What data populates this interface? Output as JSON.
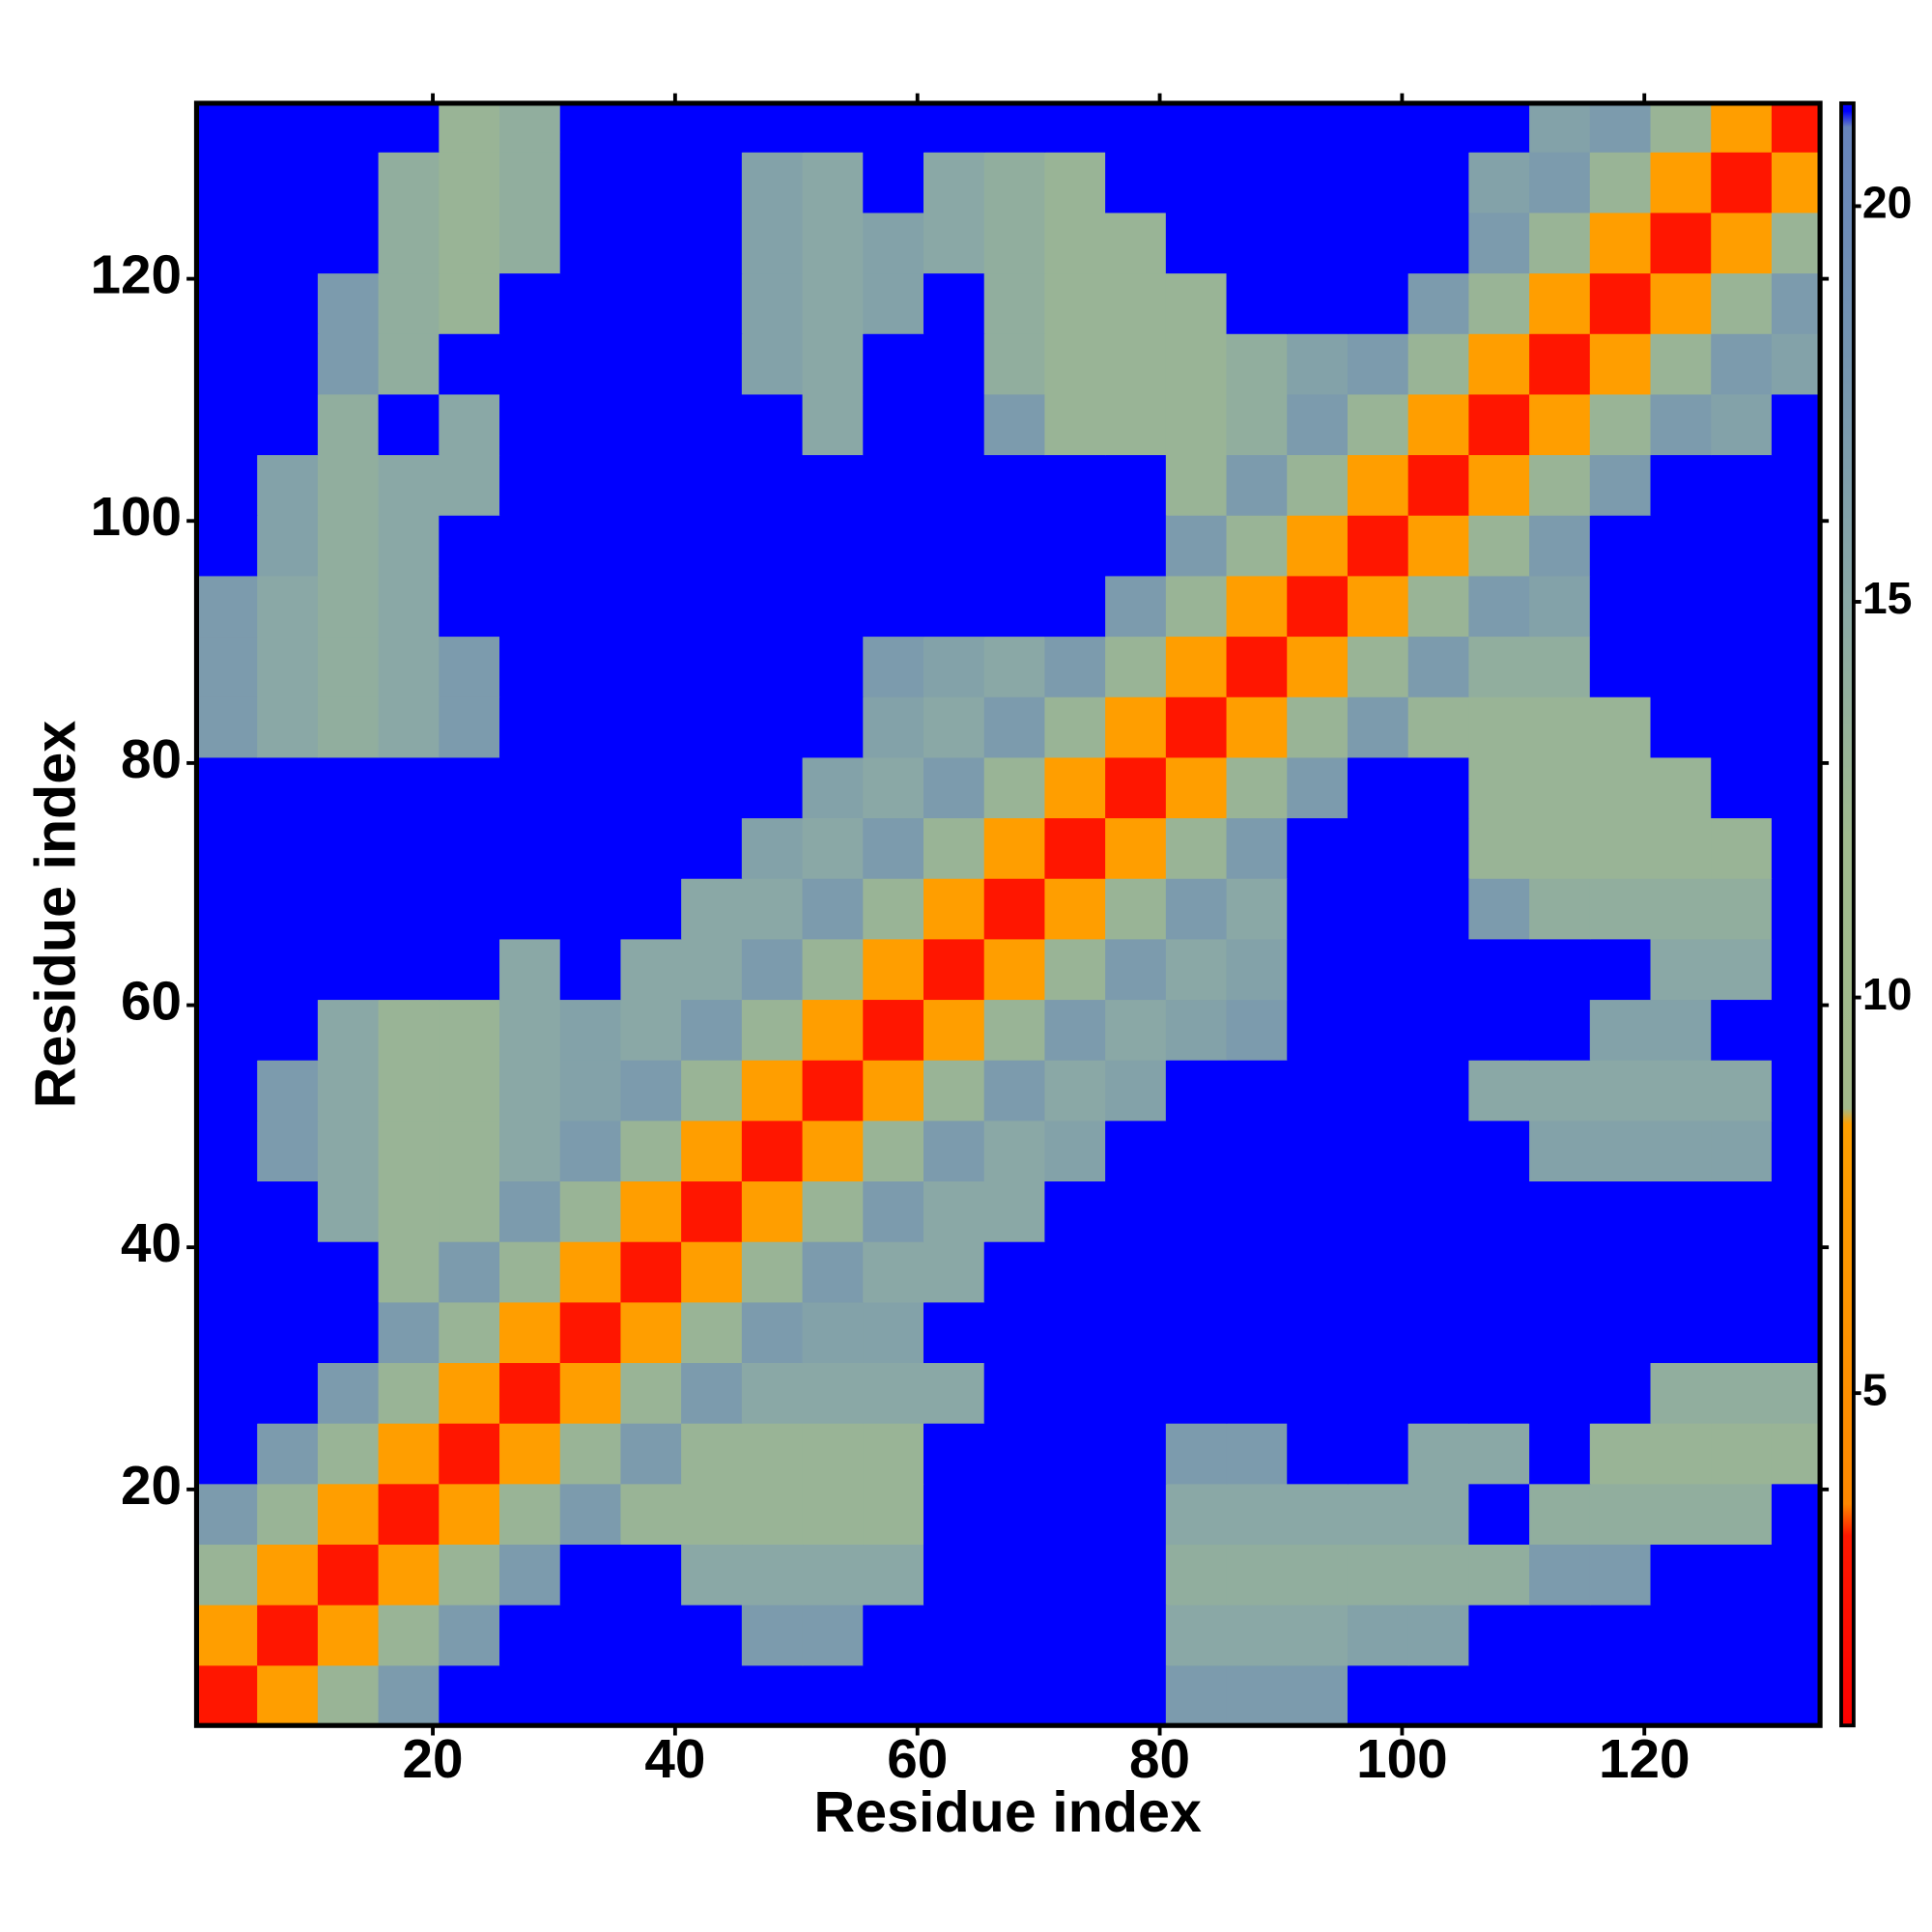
{
  "chart_data": {
    "type": "heatmap",
    "xlabel": "Residue index",
    "ylabel": "Residue index",
    "xlim": [
      0.5,
      134.5
    ],
    "ylim": [
      0.5,
      134.5
    ],
    "xticks": [
      20,
      40,
      60,
      80,
      100,
      120
    ],
    "yticks": [
      20,
      40,
      60,
      80,
      100,
      120
    ],
    "xbins": [
      0.5,
      5.5,
      10.5,
      15.5,
      20.5,
      25.5,
      30.5,
      35.5,
      40.5,
      45.5,
      50.5,
      55.5,
      60.5,
      65.5,
      70.5,
      75.5,
      80.5,
      85.5,
      90.5,
      95.5,
      100.5,
      105.5,
      110.5,
      115.5,
      120.5,
      125.5,
      130.5,
      134.5
    ],
    "ybins": [
      0.5,
      5.5,
      10.5,
      15.5,
      20.5,
      25.5,
      30.5,
      35.5,
      40.5,
      45.5,
      50.5,
      55.5,
      60.5,
      65.5,
      70.5,
      75.5,
      80.5,
      85.5,
      90.5,
      95.5,
      100.5,
      105.5,
      110.5,
      115.5,
      120.5,
      125.5,
      130.5,
      134.5
    ],
    "zlim": [
      0.8,
      21.3
    ],
    "zticks": [
      5,
      10,
      15,
      20
    ],
    "colorscale": [
      [
        0.8,
        "#ff0000"
      ],
      [
        3.2,
        "#ff1800"
      ],
      [
        3.6,
        "#ff8800"
      ],
      [
        8.4,
        "#ffa000"
      ],
      [
        8.6,
        "#a2b98a"
      ],
      [
        12,
        "#a0ba8e"
      ],
      [
        15,
        "#8aa8a6"
      ],
      [
        18,
        "#7595b0"
      ],
      [
        21,
        "#6784bc"
      ],
      [
        21.2,
        "#0000ff"
      ],
      [
        21.3,
        "#0000ff"
      ]
    ],
    "values": [
      [
        3,
        8,
        13,
        17,
        21.3,
        21.3,
        21.3,
        21.3,
        21.3,
        21.3,
        21.3,
        21.3,
        21.3,
        21.3,
        21.3,
        21.3,
        17,
        17,
        17,
        21.3,
        21.3,
        21.3,
        21.3,
        21.3,
        21.3,
        21.3,
        21.3
      ],
      [
        8,
        3,
        8,
        13,
        17,
        21.3,
        21.3,
        21.3,
        21.3,
        17,
        17,
        21.3,
        21.3,
        21.3,
        21.3,
        21.3,
        15,
        15,
        15,
        16,
        16,
        21.3,
        21.3,
        21.3,
        21.3,
        21.3,
        21.3
      ],
      [
        13,
        8,
        3,
        8,
        13,
        17,
        21.3,
        21.3,
        15,
        15,
        15,
        15,
        21.3,
        21.3,
        21.3,
        21.3,
        14,
        14,
        14,
        14,
        14,
        14,
        17,
        17,
        21.3,
        21.3,
        21.3
      ],
      [
        17,
        13,
        8,
        3,
        8,
        13,
        17,
        13,
        13,
        13,
        13,
        13,
        21.3,
        21.3,
        21.3,
        21.3,
        15,
        15,
        15,
        15,
        15,
        21.3,
        14,
        14,
        14,
        14,
        21.3
      ],
      [
        21.3,
        17,
        13,
        8,
        3,
        8,
        13,
        17,
        13,
        13,
        13,
        13,
        21.3,
        21.3,
        21.3,
        21.3,
        17,
        17,
        21.3,
        21.3,
        15,
        15,
        21.3,
        13,
        13,
        13,
        13
      ],
      [
        21.3,
        21.3,
        17,
        13,
        8,
        3,
        8,
        13,
        17,
        15,
        15,
        15,
        15,
        21.3,
        21.3,
        21.3,
        21.3,
        21.3,
        21.3,
        21.3,
        21.3,
        21.3,
        21.3,
        21.3,
        14,
        14,
        14
      ],
      [
        21.3,
        21.3,
        21.3,
        17,
        13,
        8,
        3,
        8,
        13,
        17,
        16,
        16,
        21.3,
        21.3,
        21.3,
        21.3,
        21.3,
        21.3,
        21.3,
        21.3,
        21.3,
        21.3,
        21.3,
        21.3,
        21.3,
        21.3,
        21.3
      ],
      [
        21.3,
        21.3,
        21.3,
        13,
        17,
        13,
        8,
        3,
        8,
        13,
        17,
        15,
        15,
        21.3,
        21.3,
        21.3,
        21.3,
        21.3,
        21.3,
        21.3,
        21.3,
        21.3,
        21.3,
        21.3,
        21.3,
        21.3,
        21.3
      ],
      [
        21.3,
        21.3,
        15,
        13,
        13,
        17,
        13,
        8,
        3,
        8,
        13,
        17,
        15,
        15,
        21.3,
        21.3,
        21.3,
        21.3,
        21.3,
        21.3,
        21.3,
        21.3,
        21.3,
        21.3,
        21.3,
        21.3,
        21.3
      ],
      [
        21.3,
        17,
        15,
        13,
        13,
        15,
        17,
        13,
        8,
        3,
        8,
        13,
        17,
        15,
        16,
        21.3,
        21.3,
        21.3,
        21.3,
        21.3,
        21.3,
        21.3,
        16,
        16,
        16,
        16,
        21.3
      ],
      [
        21.3,
        17,
        15,
        13,
        13,
        15,
        16,
        17,
        13,
        8,
        3,
        8,
        13,
        17,
        15,
        16,
        21.3,
        21.3,
        21.3,
        21.3,
        21.3,
        15,
        15,
        15,
        15,
        15,
        21.3
      ],
      [
        21.3,
        21.3,
        15,
        13,
        13,
        15,
        16,
        15,
        17,
        13,
        8,
        3,
        8,
        13,
        17,
        15,
        16,
        17,
        21.3,
        21.3,
        21.3,
        21.3,
        21.3,
        16,
        16,
        21.3,
        21.3
      ],
      [
        21.3,
        21.3,
        21.3,
        21.3,
        21.3,
        15,
        21.3,
        15,
        15,
        17,
        13,
        8,
        3,
        8,
        13,
        17,
        15,
        16,
        21.3,
        21.3,
        21.3,
        21.3,
        21.3,
        21.3,
        15,
        15,
        21.3
      ],
      [
        21.3,
        21.3,
        21.3,
        21.3,
        21.3,
        21.3,
        21.3,
        21.3,
        15,
        15,
        17,
        13,
        8,
        3,
        8,
        13,
        17,
        15,
        21.3,
        21.3,
        21.3,
        17,
        14,
        14,
        14,
        14,
        21.3
      ],
      [
        21.3,
        21.3,
        21.3,
        21.3,
        21.3,
        21.3,
        21.3,
        21.3,
        21.3,
        16,
        15,
        17,
        13,
        8,
        3,
        8,
        13,
        17,
        21.3,
        21.3,
        21.3,
        13,
        13,
        13,
        13,
        13,
        21.3
      ],
      [
        21.3,
        21.3,
        21.3,
        21.3,
        21.3,
        21.3,
        21.3,
        21.3,
        21.3,
        21.3,
        16,
        15,
        17,
        13,
        8,
        3,
        8,
        13,
        17,
        21.3,
        21.3,
        13,
        13,
        13,
        13,
        21.3,
        21.3
      ],
      [
        17,
        15,
        14,
        15,
        17,
        21.3,
        21.3,
        21.3,
        21.3,
        21.3,
        21.3,
        16,
        15,
        17,
        13,
        8,
        3,
        8,
        13,
        17,
        13,
        13,
        13,
        13,
        21.3,
        21.3,
        21.3
      ],
      [
        17,
        15,
        14,
        15,
        17,
        21.3,
        21.3,
        21.3,
        21.3,
        21.3,
        21.3,
        17,
        16,
        15,
        17,
        13,
        8,
        3,
        8,
        13,
        17,
        14,
        14,
        21.3,
        21.3,
        21.3,
        21.3
      ],
      [
        17,
        15,
        14,
        15,
        21.3,
        21.3,
        21.3,
        21.3,
        21.3,
        21.3,
        21.3,
        21.3,
        21.3,
        21.3,
        21.3,
        17,
        13,
        8,
        3,
        8,
        13,
        17,
        16,
        21.3,
        21.3,
        21.3,
        21.3
      ],
      [
        21.3,
        16,
        14,
        15,
        21.3,
        21.3,
        21.3,
        21.3,
        21.3,
        21.3,
        21.3,
        21.3,
        21.3,
        21.3,
        21.3,
        21.3,
        17,
        13,
        8,
        3,
        8,
        13,
        17,
        21.3,
        21.3,
        21.3,
        21.3
      ],
      [
        21.3,
        16,
        14,
        15,
        15,
        21.3,
        21.3,
        21.3,
        21.3,
        21.3,
        21.3,
        21.3,
        21.3,
        21.3,
        21.3,
        21.3,
        13,
        17,
        13,
        8,
        3,
        8,
        13,
        17,
        21.3,
        21.3,
        21.3
      ],
      [
        21.3,
        21.3,
        14,
        21.3,
        15,
        21.3,
        21.3,
        21.3,
        21.3,
        21.3,
        15,
        21.3,
        21.3,
        17,
        13,
        13,
        13,
        14,
        17,
        13,
        8,
        3,
        8,
        13,
        17,
        16,
        21.3
      ],
      [
        21.3,
        21.3,
        17,
        14,
        21.3,
        21.3,
        21.3,
        21.3,
        21.3,
        16,
        15,
        21.3,
        21.3,
        14,
        13,
        13,
        13,
        14,
        16,
        17,
        13,
        8,
        3,
        8,
        13,
        17,
        16
      ],
      [
        21.3,
        21.3,
        17,
        14,
        13,
        21.3,
        21.3,
        21.3,
        21.3,
        16,
        15,
        16,
        21.3,
        14,
        13,
        13,
        13,
        21.3,
        21.3,
        21.3,
        17,
        13,
        8,
        3,
        8,
        13,
        17
      ],
      [
        21.3,
        21.3,
        21.3,
        14,
        13,
        14,
        21.3,
        21.3,
        21.3,
        16,
        15,
        16,
        15,
        14,
        13,
        13,
        21.3,
        21.3,
        21.3,
        21.3,
        21.3,
        17,
        13,
        8,
        3,
        8,
        13
      ],
      [
        21.3,
        21.3,
        21.3,
        14,
        13,
        14,
        21.3,
        21.3,
        21.3,
        16,
        15,
        21.3,
        15,
        14,
        13,
        21.3,
        21.3,
        21.3,
        21.3,
        21.3,
        21.3,
        16,
        17,
        13,
        8,
        3,
        8
      ],
      [
        21.3,
        21.3,
        21.3,
        21.3,
        13,
        14,
        21.3,
        21.3,
        21.3,
        21.3,
        21.3,
        21.3,
        21.3,
        21.3,
        21.3,
        21.3,
        21.3,
        21.3,
        21.3,
        21.3,
        21.3,
        21.3,
        16,
        17,
        13,
        8,
        3
      ]
    ]
  }
}
